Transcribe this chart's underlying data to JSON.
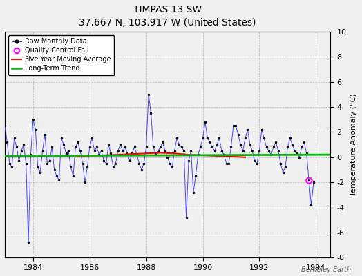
{
  "title": "TIMPAS 13 SW",
  "subtitle": "37.667 N, 103.917 W (United States)",
  "ylabel": "Temperature Anomaly (°C)",
  "watermark": "Berkeley Earth",
  "xlim": [
    1983.0,
    1994.5
  ],
  "ylim": [
    -8,
    10
  ],
  "yticks": [
    -8,
    -6,
    -4,
    -2,
    0,
    2,
    4,
    6,
    8,
    10
  ],
  "xticks": [
    1984,
    1986,
    1988,
    1990,
    1992,
    1994
  ],
  "bg_color": "#f0f0f0",
  "plot_bg_color": "#f0f0f0",
  "raw_data_color": "#4444ff",
  "ma_color": "#ff0000",
  "trend_color": "#00bb00",
  "qc_color": "#ff00ff",
  "raw_x": [
    1983.0,
    1983.083,
    1983.167,
    1983.25,
    1983.333,
    1983.417,
    1983.5,
    1983.583,
    1983.667,
    1983.75,
    1983.833,
    1983.917,
    1984.0,
    1984.083,
    1984.167,
    1984.25,
    1984.333,
    1984.417,
    1984.5,
    1984.583,
    1984.667,
    1984.75,
    1984.833,
    1984.917,
    1985.0,
    1985.083,
    1985.167,
    1985.25,
    1985.333,
    1985.417,
    1985.5,
    1985.583,
    1985.667,
    1985.75,
    1985.833,
    1985.917,
    1986.0,
    1986.083,
    1986.167,
    1986.25,
    1986.333,
    1986.417,
    1986.5,
    1986.583,
    1986.667,
    1986.75,
    1986.833,
    1986.917,
    1987.0,
    1987.083,
    1987.167,
    1987.25,
    1987.333,
    1987.417,
    1987.5,
    1987.583,
    1987.667,
    1987.75,
    1987.833,
    1987.917,
    1988.0,
    1988.083,
    1988.167,
    1988.25,
    1988.333,
    1988.417,
    1988.5,
    1988.583,
    1988.667,
    1988.75,
    1988.833,
    1988.917,
    1989.0,
    1989.083,
    1989.167,
    1989.25,
    1989.333,
    1989.417,
    1989.5,
    1989.583,
    1989.667,
    1989.75,
    1989.833,
    1989.917,
    1990.0,
    1990.083,
    1990.167,
    1990.25,
    1990.333,
    1990.417,
    1990.5,
    1990.583,
    1990.667,
    1990.75,
    1990.833,
    1990.917,
    1991.0,
    1991.083,
    1991.167,
    1991.25,
    1991.333,
    1991.417,
    1991.5,
    1991.583,
    1991.667,
    1991.75,
    1991.833,
    1991.917,
    1992.0,
    1992.083,
    1992.167,
    1992.25,
    1992.333,
    1992.417,
    1992.5,
    1992.583,
    1992.667,
    1992.75,
    1992.833,
    1992.917,
    1993.0,
    1993.083,
    1993.167,
    1993.25,
    1993.333,
    1993.417,
    1993.5,
    1993.583,
    1993.667,
    1993.75,
    1993.833,
    1993.917
  ],
  "raw_y": [
    2.5,
    1.2,
    -0.5,
    -0.8,
    1.5,
    0.8,
    -0.3,
    0.5,
    1.0,
    -0.5,
    -6.8,
    0.2,
    3.0,
    2.2,
    -0.8,
    -1.2,
    0.5,
    1.8,
    -0.5,
    -0.3,
    0.8,
    -1.0,
    -1.5,
    -1.8,
    1.5,
    1.0,
    0.3,
    0.5,
    -0.8,
    -1.5,
    0.8,
    1.2,
    0.5,
    -0.5,
    -2.0,
    -0.8,
    0.8,
    1.5,
    0.5,
    0.8,
    0.2,
    0.5,
    -0.3,
    -0.5,
    1.0,
    0.3,
    -0.8,
    -0.5,
    0.5,
    1.0,
    0.5,
    0.8,
    0.3,
    -0.3,
    0.3,
    0.8,
    0.2,
    -0.5,
    -1.0,
    -0.5,
    0.8,
    5.0,
    3.5,
    0.8,
    0.3,
    0.5,
    0.8,
    1.2,
    0.5,
    0.0,
    -0.5,
    -0.8,
    0.5,
    1.5,
    1.0,
    0.8,
    0.5,
    -4.8,
    -0.3,
    0.5,
    -2.8,
    -1.5,
    0.2,
    0.8,
    1.5,
    2.8,
    1.5,
    1.2,
    0.8,
    0.5,
    1.0,
    1.5,
    0.5,
    0.2,
    -0.5,
    -0.5,
    0.8,
    2.5,
    2.5,
    1.8,
    1.0,
    0.5,
    1.5,
    2.2,
    1.0,
    0.5,
    -0.3,
    -0.5,
    0.5,
    2.2,
    1.5,
    0.8,
    0.5,
    0.2,
    0.8,
    1.2,
    0.5,
    -0.5,
    -1.2,
    -0.8,
    0.8,
    1.5,
    1.0,
    0.5,
    0.3,
    0.0,
    0.8,
    1.2,
    0.3,
    -1.8,
    -3.8,
    -2.0
  ],
  "ma_x": [
    1985.5,
    1986.0,
    1986.5,
    1987.0,
    1987.5,
    1988.0,
    1988.5,
    1989.0,
    1989.5,
    1990.0,
    1990.5,
    1991.0,
    1991.5
  ],
  "ma_y": [
    0.05,
    0.1,
    0.15,
    0.2,
    0.25,
    0.3,
    0.35,
    0.3,
    0.2,
    0.15,
    0.1,
    0.05,
    0.0
  ],
  "trend_x": [
    1983.0,
    1994.5
  ],
  "trend_y": [
    0.1,
    0.2
  ],
  "qc_x": [
    1993.75
  ],
  "qc_y": [
    -1.8
  ],
  "legend_items": [
    "Raw Monthly Data",
    "Quality Control Fail",
    "Five Year Moving Average",
    "Long-Term Trend"
  ]
}
